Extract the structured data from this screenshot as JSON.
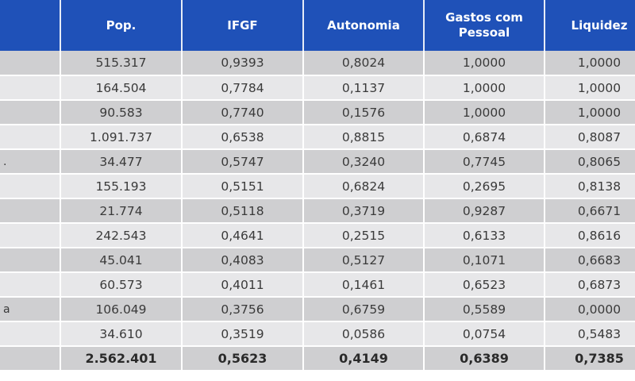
{
  "table": {
    "headers": [
      "",
      "Pop.",
      "IFGF",
      "Autonomia",
      "Gastos com Pessoal",
      "Liquidez"
    ],
    "rows": [
      [
        "",
        "515.317",
        "0,9393",
        "0,8024",
        "1,0000",
        "1,0000"
      ],
      [
        "",
        "164.504",
        "0,7784",
        "0,1137",
        "1,0000",
        "1,0000"
      ],
      [
        "",
        "90.583",
        "0,7740",
        "0,1576",
        "1,0000",
        "1,0000"
      ],
      [
        "",
        "1.091.737",
        "0,6538",
        "0,8815",
        "0,6874",
        "0,8087"
      ],
      [
        ".",
        "34.477",
        "0,5747",
        "0,3240",
        "0,7745",
        "0,8065"
      ],
      [
        "",
        "155.193",
        "0,5151",
        "0,6824",
        "0,2695",
        "0,8138"
      ],
      [
        "",
        "21.774",
        "0,5118",
        "0,3719",
        "0,9287",
        "0,6671"
      ],
      [
        "",
        "242.543",
        "0,4641",
        "0,2515",
        "0,6133",
        "0,8616"
      ],
      [
        "",
        "45.041",
        "0,4083",
        "0,5127",
        "0,1071",
        "0,6683"
      ],
      [
        "",
        "60.573",
        "0,4011",
        "0,1461",
        "0,6523",
        "0,6873"
      ],
      [
        "a",
        "106.049",
        "0,3756",
        "0,6759",
        "0,5589",
        "0,0000"
      ],
      [
        "",
        "34.610",
        "0,3519",
        "0,0586",
        "0,0754",
        "0,5483"
      ]
    ],
    "total": [
      "",
      "2.562.401",
      "0,5623",
      "0,4149",
      "0,6389",
      "0,7385"
    ]
  },
  "colors": {
    "header_bg": "#1f51b8",
    "row_dark": "#cfcfd1",
    "row_light": "#e7e7e9"
  }
}
